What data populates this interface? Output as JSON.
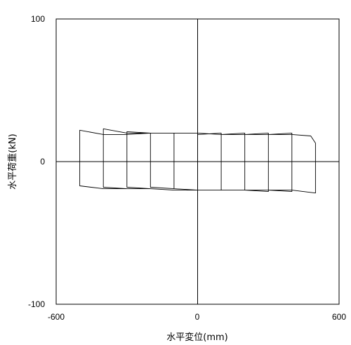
{
  "chart_data": {
    "type": "line",
    "title": "",
    "xlabel": "水平変位(mm)",
    "ylabel": "水平荷重(kN)",
    "xlim": [
      -600,
      600
    ],
    "ylim": [
      -100,
      100
    ],
    "x_ticks": [
      "-600",
      "0",
      "600"
    ],
    "y_ticks": [
      "-100",
      "0",
      "100"
    ],
    "grid": false,
    "legend": "none",
    "line_color": "#000000",
    "series": [
      {
        "description": "hysteresis loops, amplitudes ±100 to ±500 mm",
        "x": [
          0,
          100,
          100,
          0,
          -100,
          -100,
          0,
          100,
          200,
          200,
          100,
          0,
          -100,
          -200,
          -200,
          -100,
          0,
          100,
          200,
          300,
          300,
          200,
          100,
          0,
          -100,
          -200,
          -300,
          -300,
          -200,
          -100,
          0,
          100,
          200,
          300,
          400,
          400,
          300,
          200,
          100,
          0,
          -100,
          -200,
          -300,
          -400,
          -400,
          -300,
          -200,
          -100,
          0,
          100,
          200,
          300,
          400,
          480,
          500,
          500,
          400,
          300,
          200,
          100,
          0,
          -100,
          -200,
          -300,
          -400,
          -500,
          -500,
          -400,
          -300,
          -200,
          0
        ],
        "y": [
          19,
          20,
          -20,
          -20,
          -19,
          20,
          20,
          19,
          20,
          -20,
          -20,
          -20,
          -19,
          -18,
          20,
          20,
          20,
          19,
          19,
          20,
          -21,
          -20,
          -20,
          -20,
          -20,
          -19,
          -18,
          21,
          20,
          20,
          20,
          19,
          19,
          19,
          20,
          -21,
          -20,
          -20,
          -20,
          -20,
          -20,
          -19,
          -19,
          -18,
          23,
          20,
          20,
          20,
          20,
          19,
          19,
          19,
          19,
          18,
          13,
          -22,
          -20,
          -20,
          -20,
          -20,
          -20,
          -20,
          -19,
          -19,
          -19,
          -17,
          22,
          19,
          19,
          20,
          20
        ]
      }
    ]
  }
}
